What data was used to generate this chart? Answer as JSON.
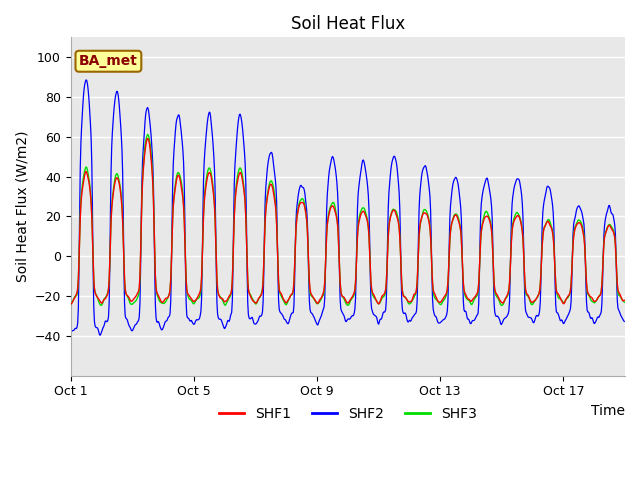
{
  "title": "Soil Heat Flux",
  "ylabel": "Soil Heat Flux (W/m2)",
  "xlabel": "Time",
  "xlim_days": [
    0,
    18
  ],
  "ylim": [
    -60,
    110
  ],
  "yticks": [
    -40,
    -20,
    0,
    20,
    40,
    60,
    80,
    100
  ],
  "xtick_labels": [
    "Oct 1",
    "Oct 5",
    "Oct 9",
    "Oct 13",
    "Oct 17"
  ],
  "xtick_positions": [
    0,
    4,
    8,
    12,
    16
  ],
  "plot_bg_color": "#e8e8e8",
  "shf1_color": "#ff0000",
  "shf2_color": "#0000ff",
  "shf3_color": "#00dd00",
  "legend_labels": [
    "SHF1",
    "SHF2",
    "SHF3"
  ],
  "station_label": "BA_met",
  "station_label_color": "#8b0000",
  "station_box_facecolor": "#ffff99",
  "station_box_edgecolor": "#996600",
  "title_fontsize": 12,
  "axis_label_fontsize": 10,
  "tick_fontsize": 9,
  "legend_fontsize": 10,
  "shf2_peak_amps": [
    90,
    84,
    75,
    73,
    72,
    72,
    53,
    36,
    50,
    48,
    51,
    47,
    40,
    40,
    40,
    35,
    25,
    24
  ],
  "shf13_peak_amps": [
    45,
    42,
    63,
    43,
    45,
    45,
    38,
    30,
    27,
    25,
    25,
    24,
    22,
    22,
    22,
    18,
    18,
    16
  ],
  "night_min": -28,
  "shf2_night_extra": [
    -15,
    -12,
    -12,
    -10,
    -10,
    -10,
    -8,
    -8,
    -8,
    -8,
    -8,
    -8,
    -8,
    -8,
    -8,
    -8,
    -8,
    -8
  ]
}
